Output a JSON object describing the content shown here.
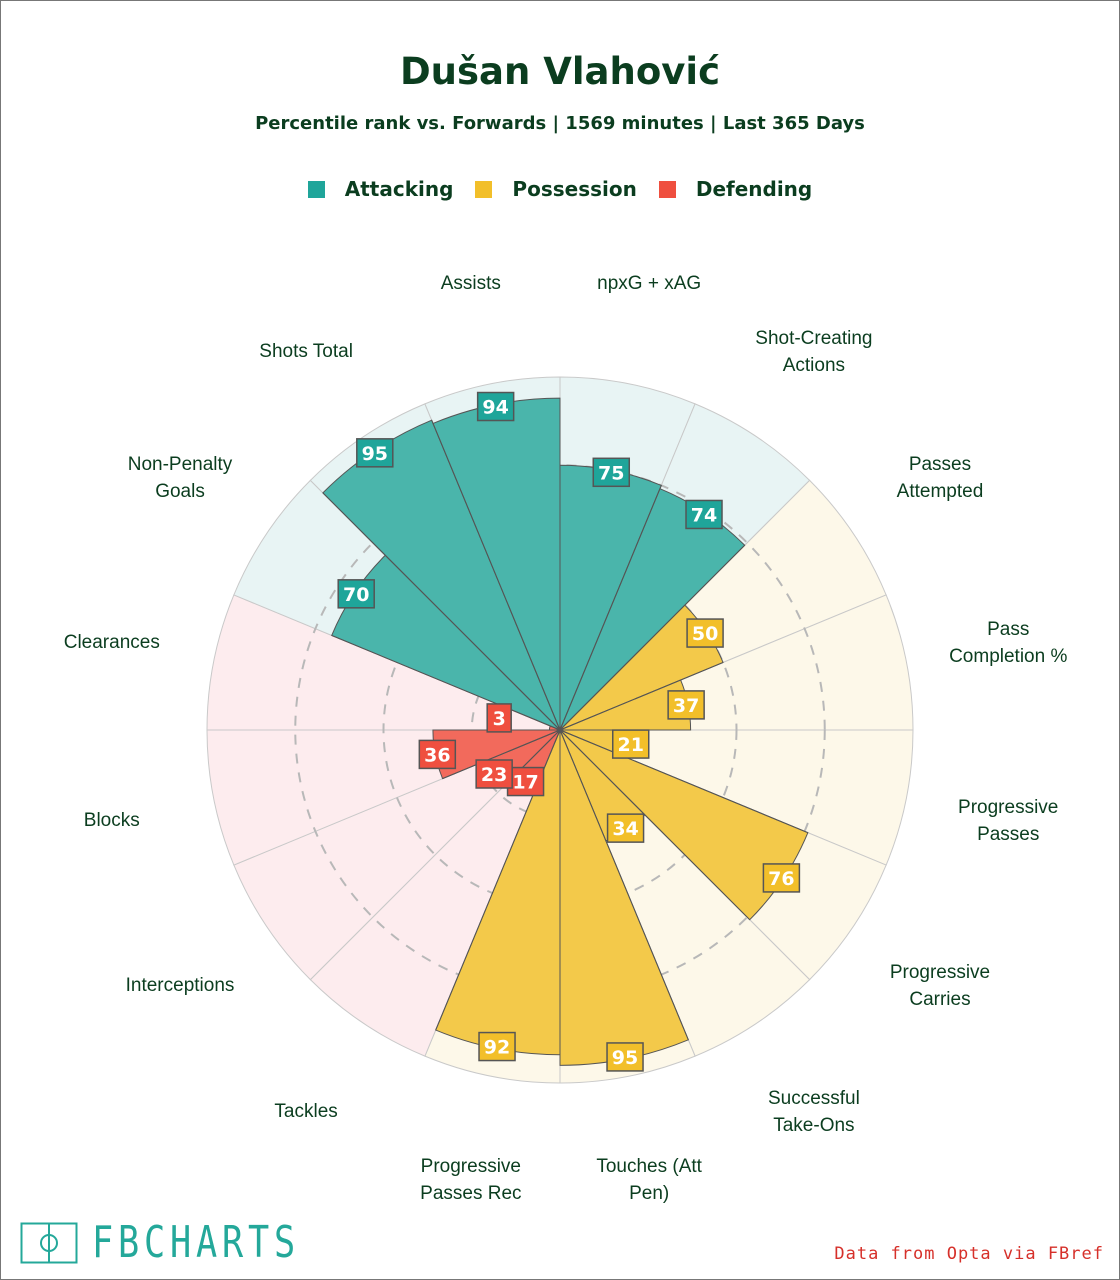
{
  "chart_data": {
    "type": "pizza",
    "title": "Dušan Vlahović",
    "subtitle": "Percentile rank vs. Forwards | 1569 minutes | Last 365 Days",
    "legend": [
      {
        "name": "Attacking",
        "color": "#1fa59a"
      },
      {
        "name": "Possession",
        "color": "#f2bf2a"
      },
      {
        "name": "Defending",
        "color": "#ef4f3f"
      }
    ],
    "range": [
      0,
      100
    ],
    "gridlines": [
      25,
      50,
      75
    ],
    "slices": [
      {
        "label": "npxG + xAG",
        "value": 75,
        "group": "Attacking"
      },
      {
        "label": "Shot-Creating\nActions",
        "value": 74,
        "group": "Attacking"
      },
      {
        "label": "Passes\nAttempted",
        "value": 50,
        "group": "Possession"
      },
      {
        "label": "Pass\nCompletion %",
        "value": 37,
        "group": "Possession"
      },
      {
        "label": "Progressive\nPasses",
        "value": 21,
        "group": "Possession"
      },
      {
        "label": "Progressive\nCarries",
        "value": 76,
        "group": "Possession"
      },
      {
        "label": "Successful\nTake-Ons",
        "value": 34,
        "group": "Possession"
      },
      {
        "label": "Touches (Att\nPen)",
        "value": 95,
        "group": "Possession"
      },
      {
        "label": "Progressive\nPasses Rec",
        "value": 92,
        "group": "Possession"
      },
      {
        "label": "Tackles",
        "value": 17,
        "group": "Defending"
      },
      {
        "label": "Interceptions",
        "value": 23,
        "group": "Defending"
      },
      {
        "label": "Blocks",
        "value": 36,
        "group": "Defending"
      },
      {
        "label": "Clearances",
        "value": 3,
        "group": "Defending"
      },
      {
        "label": "Non-Penalty\nGoals",
        "value": 70,
        "group": "Attacking"
      },
      {
        "label": "Shots Total",
        "value": 95,
        "group": "Attacking"
      },
      {
        "label": "Assists",
        "value": 94,
        "group": "Attacking"
      }
    ]
  },
  "footer": {
    "logo": "FBCHARTS",
    "credit": "Data from Opta via FBref"
  }
}
